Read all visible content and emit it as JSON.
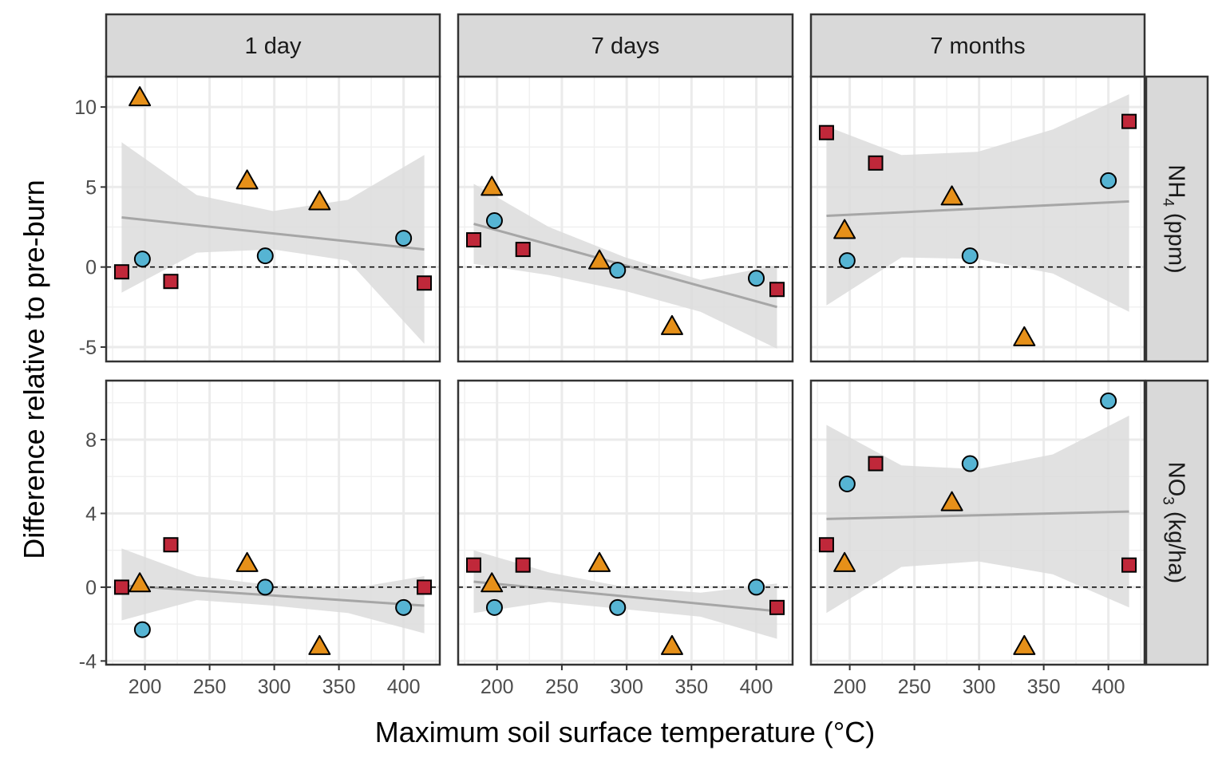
{
  "chart_data": {
    "type": "scatter",
    "xlabel": "Maximum soil surface temperature (°C)",
    "ylabel": "Difference relative to pre-burn",
    "x_ticks": [
      200,
      250,
      300,
      350,
      400
    ],
    "xlim": [
      170,
      428
    ],
    "facet_columns": [
      "1 day",
      "7 days",
      "7 months"
    ],
    "facet_rows": [
      {
        "label_main": "NH",
        "label_sub": "4",
        "label_rest": " (ppm)",
        "ylim": [
          -5.9,
          11.9
        ],
        "y_ticks": [
          10,
          5,
          0,
          -5
        ],
        "y_tick_labels": [
          "10",
          "5",
          "0",
          "-5"
        ]
      },
      {
        "label_main": "NO",
        "label_sub": "3",
        "label_rest": " (kg/ha)",
        "ylim": [
          -4.2,
          11.2
        ],
        "y_ticks": [
          8,
          4,
          0,
          -4
        ],
        "y_tick_labels": [
          "8",
          "4",
          "0",
          "-4"
        ]
      }
    ],
    "grid": true,
    "reference_line_y": 0,
    "colors": {
      "square": "#C0283A",
      "circle": "#56B4D3",
      "triangle": "#E69019",
      "fit_line": "#A6A6A6",
      "ribbon": "#DCDCDC"
    },
    "panels": [
      {
        "column": "1 day",
        "row": "NH4",
        "points": [
          {
            "shape": "square",
            "x": 182,
            "y": -0.3
          },
          {
            "shape": "square",
            "x": 220,
            "y": -0.9
          },
          {
            "shape": "square",
            "x": 416,
            "y": -1.0
          },
          {
            "shape": "circle",
            "x": 198,
            "y": 0.5
          },
          {
            "shape": "circle",
            "x": 293,
            "y": 0.7
          },
          {
            "shape": "circle",
            "x": 400,
            "y": 1.8
          },
          {
            "shape": "triangle",
            "x": 196,
            "y": 10.6
          },
          {
            "shape": "triangle",
            "x": 279,
            "y": 5.4
          },
          {
            "shape": "triangle",
            "x": 335,
            "y": 4.1
          }
        ],
        "fit": {
          "x0": 182,
          "y0": 3.1,
          "x1": 416,
          "y1": 1.1
        },
        "band": {
          "upper": [
            7.8,
            4.5,
            3.5,
            4.2,
            7.0
          ],
          "lower": [
            -1.6,
            0.9,
            1.1,
            0.4,
            -4.8
          ]
        }
      },
      {
        "column": "7 days",
        "row": "NH4",
        "points": [
          {
            "shape": "square",
            "x": 182,
            "y": 1.7
          },
          {
            "shape": "square",
            "x": 220,
            "y": 1.1
          },
          {
            "shape": "square",
            "x": 416,
            "y": -1.4
          },
          {
            "shape": "circle",
            "x": 198,
            "y": 2.9
          },
          {
            "shape": "circle",
            "x": 293,
            "y": -0.2
          },
          {
            "shape": "circle",
            "x": 400,
            "y": -0.7
          },
          {
            "shape": "triangle",
            "x": 196,
            "y": 5.0
          },
          {
            "shape": "triangle",
            "x": 279,
            "y": 0.4
          },
          {
            "shape": "triangle",
            "x": 335,
            "y": -3.7
          }
        ],
        "fit": {
          "x0": 182,
          "y0": 2.7,
          "x1": 416,
          "y1": -2.5
        },
        "band": {
          "upper": [
            5.2,
            2.5,
            0.6,
            -0.8,
            0.1
          ],
          "lower": [
            0.2,
            -0.5,
            -1.5,
            -2.8,
            -5.1
          ]
        }
      },
      {
        "column": "7 months",
        "row": "NH4",
        "points": [
          {
            "shape": "square",
            "x": 182,
            "y": 8.4
          },
          {
            "shape": "square",
            "x": 220,
            "y": 6.5
          },
          {
            "shape": "square",
            "x": 416,
            "y": 9.1
          },
          {
            "shape": "circle",
            "x": 198,
            "y": 0.4
          },
          {
            "shape": "circle",
            "x": 293,
            "y": 0.7
          },
          {
            "shape": "circle",
            "x": 400,
            "y": 5.4
          },
          {
            "shape": "triangle",
            "x": 196,
            "y": 2.3
          },
          {
            "shape": "triangle",
            "x": 279,
            "y": 4.4
          },
          {
            "shape": "triangle",
            "x": 335,
            "y": -4.4
          }
        ],
        "fit": {
          "x0": 182,
          "y0": 3.2,
          "x1": 416,
          "y1": 4.1
        },
        "band": {
          "upper": [
            8.8,
            7.0,
            7.2,
            8.6,
            10.8
          ],
          "lower": [
            -2.4,
            0.6,
            0.5,
            -0.4,
            -2.8
          ]
        }
      },
      {
        "column": "1 day",
        "row": "NO3",
        "points": [
          {
            "shape": "square",
            "x": 182,
            "y": 0.0
          },
          {
            "shape": "square",
            "x": 220,
            "y": 2.3
          },
          {
            "shape": "square",
            "x": 416,
            "y": 0.0
          },
          {
            "shape": "circle",
            "x": 198,
            "y": -2.3
          },
          {
            "shape": "circle",
            "x": 293,
            "y": 0.0
          },
          {
            "shape": "circle",
            "x": 400,
            "y": -1.1
          },
          {
            "shape": "triangle",
            "x": 196,
            "y": 0.2
          },
          {
            "shape": "triangle",
            "x": 279,
            "y": 1.3
          },
          {
            "shape": "triangle",
            "x": 335,
            "y": -3.2
          }
        ],
        "fit": {
          "x0": 182,
          "y0": 0.1,
          "x1": 416,
          "y1": -1.0
        },
        "band": {
          "upper": [
            2.1,
            0.6,
            0.1,
            -0.1,
            0.6
          ],
          "lower": [
            -1.8,
            -0.7,
            -1.0,
            -1.4,
            -2.5
          ]
        }
      },
      {
        "column": "7 days",
        "row": "NO3",
        "points": [
          {
            "shape": "square",
            "x": 182,
            "y": 1.2
          },
          {
            "shape": "square",
            "x": 220,
            "y": 1.2
          },
          {
            "shape": "square",
            "x": 416,
            "y": -1.1
          },
          {
            "shape": "circle",
            "x": 198,
            "y": -1.1
          },
          {
            "shape": "circle",
            "x": 293,
            "y": -1.1
          },
          {
            "shape": "circle",
            "x": 400,
            "y": 0.0
          },
          {
            "shape": "triangle",
            "x": 196,
            "y": 0.2
          },
          {
            "shape": "triangle",
            "x": 279,
            "y": 1.3
          },
          {
            "shape": "triangle",
            "x": 335,
            "y": -3.2
          }
        ],
        "fit": {
          "x0": 182,
          "y0": 0.3,
          "x1": 416,
          "y1": -1.3
        },
        "band": {
          "upper": [
            2.0,
            0.8,
            0.0,
            -0.3,
            0.2
          ],
          "lower": [
            -1.4,
            -0.8,
            -1.2,
            -1.6,
            -2.8
          ]
        }
      },
      {
        "column": "7 months",
        "row": "NO3",
        "points": [
          {
            "shape": "square",
            "x": 182,
            "y": 2.3
          },
          {
            "shape": "square",
            "x": 220,
            "y": 6.7
          },
          {
            "shape": "square",
            "x": 416,
            "y": 1.2
          },
          {
            "shape": "circle",
            "x": 198,
            "y": 5.6
          },
          {
            "shape": "circle",
            "x": 293,
            "y": 6.7
          },
          {
            "shape": "circle",
            "x": 400,
            "y": 10.1
          },
          {
            "shape": "triangle",
            "x": 196,
            "y": 1.3
          },
          {
            "shape": "triangle",
            "x": 279,
            "y": 4.6
          },
          {
            "shape": "triangle",
            "x": 335,
            "y": -3.2
          }
        ],
        "fit": {
          "x0": 182,
          "y0": 3.7,
          "x1": 416,
          "y1": 4.1
        },
        "band": {
          "upper": [
            8.8,
            6.6,
            6.4,
            7.2,
            9.3
          ],
          "lower": [
            -1.4,
            1.1,
            1.4,
            0.7,
            -1.1
          ]
        }
      }
    ]
  }
}
